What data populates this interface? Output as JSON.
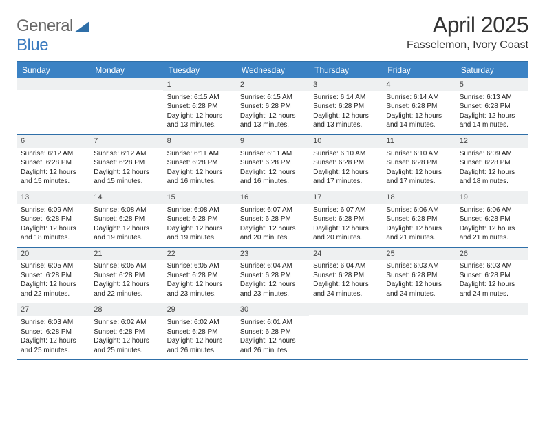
{
  "logo": {
    "brand_a": "General",
    "brand_b": "Blue",
    "color_a": "#666666",
    "color_b": "#3b7bbf",
    "shape_fill": "#2f6fa8"
  },
  "header": {
    "title": "April 2025",
    "location": "Fasselemon, Ivory Coast"
  },
  "colors": {
    "header_bg": "#3b82c4",
    "header_text": "#ffffff",
    "border": "#2f6fa8",
    "daynum_bg": "#eef0f1",
    "text": "#222222"
  },
  "day_labels": [
    "Sunday",
    "Monday",
    "Tuesday",
    "Wednesday",
    "Thursday",
    "Friday",
    "Saturday"
  ],
  "weeks": [
    [
      {
        "day": "",
        "sunrise": "",
        "sunset": "",
        "daylight1": "",
        "daylight2": ""
      },
      {
        "day": "",
        "sunrise": "",
        "sunset": "",
        "daylight1": "",
        "daylight2": ""
      },
      {
        "day": "1",
        "sunrise": "Sunrise: 6:15 AM",
        "sunset": "Sunset: 6:28 PM",
        "daylight1": "Daylight: 12 hours",
        "daylight2": "and 13 minutes."
      },
      {
        "day": "2",
        "sunrise": "Sunrise: 6:15 AM",
        "sunset": "Sunset: 6:28 PM",
        "daylight1": "Daylight: 12 hours",
        "daylight2": "and 13 minutes."
      },
      {
        "day": "3",
        "sunrise": "Sunrise: 6:14 AM",
        "sunset": "Sunset: 6:28 PM",
        "daylight1": "Daylight: 12 hours",
        "daylight2": "and 13 minutes."
      },
      {
        "day": "4",
        "sunrise": "Sunrise: 6:14 AM",
        "sunset": "Sunset: 6:28 PM",
        "daylight1": "Daylight: 12 hours",
        "daylight2": "and 14 minutes."
      },
      {
        "day": "5",
        "sunrise": "Sunrise: 6:13 AM",
        "sunset": "Sunset: 6:28 PM",
        "daylight1": "Daylight: 12 hours",
        "daylight2": "and 14 minutes."
      }
    ],
    [
      {
        "day": "6",
        "sunrise": "Sunrise: 6:12 AM",
        "sunset": "Sunset: 6:28 PM",
        "daylight1": "Daylight: 12 hours",
        "daylight2": "and 15 minutes."
      },
      {
        "day": "7",
        "sunrise": "Sunrise: 6:12 AM",
        "sunset": "Sunset: 6:28 PM",
        "daylight1": "Daylight: 12 hours",
        "daylight2": "and 15 minutes."
      },
      {
        "day": "8",
        "sunrise": "Sunrise: 6:11 AM",
        "sunset": "Sunset: 6:28 PM",
        "daylight1": "Daylight: 12 hours",
        "daylight2": "and 16 minutes."
      },
      {
        "day": "9",
        "sunrise": "Sunrise: 6:11 AM",
        "sunset": "Sunset: 6:28 PM",
        "daylight1": "Daylight: 12 hours",
        "daylight2": "and 16 minutes."
      },
      {
        "day": "10",
        "sunrise": "Sunrise: 6:10 AM",
        "sunset": "Sunset: 6:28 PM",
        "daylight1": "Daylight: 12 hours",
        "daylight2": "and 17 minutes."
      },
      {
        "day": "11",
        "sunrise": "Sunrise: 6:10 AM",
        "sunset": "Sunset: 6:28 PM",
        "daylight1": "Daylight: 12 hours",
        "daylight2": "and 17 minutes."
      },
      {
        "day": "12",
        "sunrise": "Sunrise: 6:09 AM",
        "sunset": "Sunset: 6:28 PM",
        "daylight1": "Daylight: 12 hours",
        "daylight2": "and 18 minutes."
      }
    ],
    [
      {
        "day": "13",
        "sunrise": "Sunrise: 6:09 AM",
        "sunset": "Sunset: 6:28 PM",
        "daylight1": "Daylight: 12 hours",
        "daylight2": "and 18 minutes."
      },
      {
        "day": "14",
        "sunrise": "Sunrise: 6:08 AM",
        "sunset": "Sunset: 6:28 PM",
        "daylight1": "Daylight: 12 hours",
        "daylight2": "and 19 minutes."
      },
      {
        "day": "15",
        "sunrise": "Sunrise: 6:08 AM",
        "sunset": "Sunset: 6:28 PM",
        "daylight1": "Daylight: 12 hours",
        "daylight2": "and 19 minutes."
      },
      {
        "day": "16",
        "sunrise": "Sunrise: 6:07 AM",
        "sunset": "Sunset: 6:28 PM",
        "daylight1": "Daylight: 12 hours",
        "daylight2": "and 20 minutes."
      },
      {
        "day": "17",
        "sunrise": "Sunrise: 6:07 AM",
        "sunset": "Sunset: 6:28 PM",
        "daylight1": "Daylight: 12 hours",
        "daylight2": "and 20 minutes."
      },
      {
        "day": "18",
        "sunrise": "Sunrise: 6:06 AM",
        "sunset": "Sunset: 6:28 PM",
        "daylight1": "Daylight: 12 hours",
        "daylight2": "and 21 minutes."
      },
      {
        "day": "19",
        "sunrise": "Sunrise: 6:06 AM",
        "sunset": "Sunset: 6:28 PM",
        "daylight1": "Daylight: 12 hours",
        "daylight2": "and 21 minutes."
      }
    ],
    [
      {
        "day": "20",
        "sunrise": "Sunrise: 6:05 AM",
        "sunset": "Sunset: 6:28 PM",
        "daylight1": "Daylight: 12 hours",
        "daylight2": "and 22 minutes."
      },
      {
        "day": "21",
        "sunrise": "Sunrise: 6:05 AM",
        "sunset": "Sunset: 6:28 PM",
        "daylight1": "Daylight: 12 hours",
        "daylight2": "and 22 minutes."
      },
      {
        "day": "22",
        "sunrise": "Sunrise: 6:05 AM",
        "sunset": "Sunset: 6:28 PM",
        "daylight1": "Daylight: 12 hours",
        "daylight2": "and 23 minutes."
      },
      {
        "day": "23",
        "sunrise": "Sunrise: 6:04 AM",
        "sunset": "Sunset: 6:28 PM",
        "daylight1": "Daylight: 12 hours",
        "daylight2": "and 23 minutes."
      },
      {
        "day": "24",
        "sunrise": "Sunrise: 6:04 AM",
        "sunset": "Sunset: 6:28 PM",
        "daylight1": "Daylight: 12 hours",
        "daylight2": "and 24 minutes."
      },
      {
        "day": "25",
        "sunrise": "Sunrise: 6:03 AM",
        "sunset": "Sunset: 6:28 PM",
        "daylight1": "Daylight: 12 hours",
        "daylight2": "and 24 minutes."
      },
      {
        "day": "26",
        "sunrise": "Sunrise: 6:03 AM",
        "sunset": "Sunset: 6:28 PM",
        "daylight1": "Daylight: 12 hours",
        "daylight2": "and 24 minutes."
      }
    ],
    [
      {
        "day": "27",
        "sunrise": "Sunrise: 6:03 AM",
        "sunset": "Sunset: 6:28 PM",
        "daylight1": "Daylight: 12 hours",
        "daylight2": "and 25 minutes."
      },
      {
        "day": "28",
        "sunrise": "Sunrise: 6:02 AM",
        "sunset": "Sunset: 6:28 PM",
        "daylight1": "Daylight: 12 hours",
        "daylight2": "and 25 minutes."
      },
      {
        "day": "29",
        "sunrise": "Sunrise: 6:02 AM",
        "sunset": "Sunset: 6:28 PM",
        "daylight1": "Daylight: 12 hours",
        "daylight2": "and 26 minutes."
      },
      {
        "day": "30",
        "sunrise": "Sunrise: 6:01 AM",
        "sunset": "Sunset: 6:28 PM",
        "daylight1": "Daylight: 12 hours",
        "daylight2": "and 26 minutes."
      },
      {
        "day": "",
        "sunrise": "",
        "sunset": "",
        "daylight1": "",
        "daylight2": ""
      },
      {
        "day": "",
        "sunrise": "",
        "sunset": "",
        "daylight1": "",
        "daylight2": ""
      },
      {
        "day": "",
        "sunrise": "",
        "sunset": "",
        "daylight1": "",
        "daylight2": ""
      }
    ]
  ]
}
